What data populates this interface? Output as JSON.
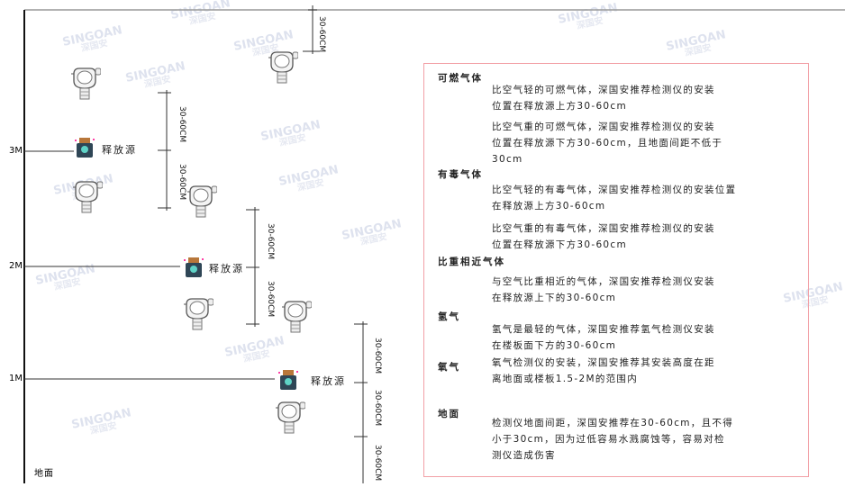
{
  "watermark": {
    "brand": "SINGOAN",
    "brand_cn": "深国安"
  },
  "levels": {
    "m3": "3M",
    "m2": "2M",
    "m1": "1M",
    "ground": "地面"
  },
  "source_label": "释放源",
  "dimension_label": "30-60CM",
  "notes": {
    "flammable": {
      "title": "可燃气体",
      "lighter": "比空气轻的可燃气体，深国安推荐检测仪的安装\n位置在释放源上方30-60cm",
      "heavier": "比空气重的可燃气体，深国安推荐检测仪的安装\n位置在释放源下方30-60cm，且地面间距不低于\n30cm"
    },
    "toxic": {
      "title": "有毒气体",
      "lighter": "比空气轻的有毒气体，深国安推荐检测仪的安装位置\n在释放源上方30-60cm",
      "heavier": "比空气重的有毒气体，深国安推荐检测仪的安装\n位置在释放源下方30-60cm"
    },
    "similar": {
      "title": "比重相近气体",
      "text": "与空气比重相近的气体，深国安推荐检测仪安装\n在释放源上下的30-60cm"
    },
    "hydrogen": {
      "title": "氢气",
      "text": "氢气是最轻的气体，深国安推荐氢气检测仪安装\n在楼板面下方的30-60cm"
    },
    "oxygen": {
      "title": "氧气",
      "text": "氧气检测仪的安装，深国安推荐其安装高度在距\n离地面或楼板1.5-2M的范围内"
    },
    "ground": {
      "title": "地面",
      "text": "检测仪地面间距，深国安推荐在30-60cm，且不得\n小于30cm，因为过低容易水溅腐蚀等，容易对检\n测仪造成伤害"
    }
  },
  "colors": {
    "frame_border": "#f2a0a6",
    "source_body": "#2f4656",
    "source_cap": "#b8773a",
    "source_icon": "#5fd3c6"
  }
}
